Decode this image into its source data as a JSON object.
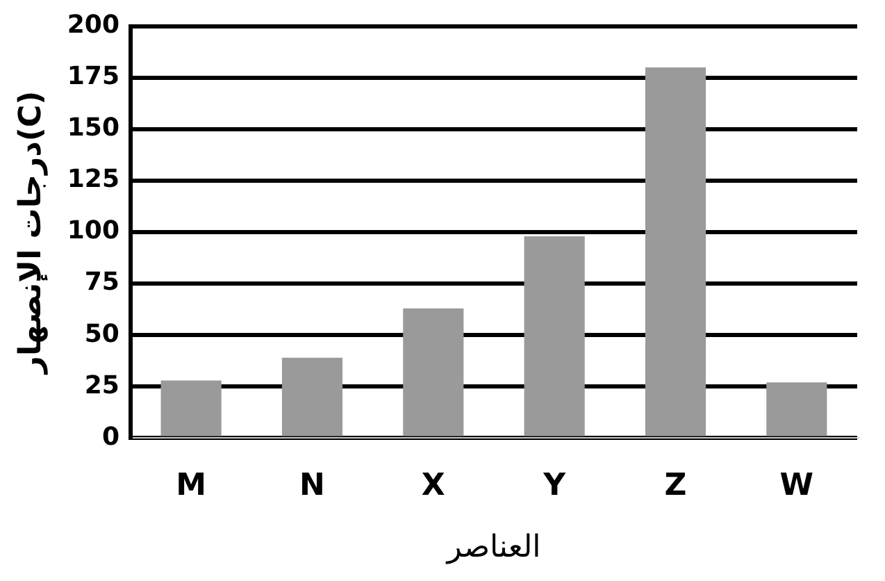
{
  "chart_data": {
    "type": "bar",
    "xlabel": "العناصر",
    "ylabel": "درجات الإنصهار(C)",
    "categories": [
      "M",
      "N",
      "X",
      "Y",
      "Z",
      "W"
    ],
    "values": [
      28,
      39,
      63,
      98,
      180,
      27
    ],
    "color": "#9a9a9a",
    "ylim": [
      0,
      200
    ],
    "yticks": [
      0,
      25,
      50,
      75,
      100,
      125,
      150,
      175,
      200
    ],
    "grid": "y",
    "legend": false
  }
}
